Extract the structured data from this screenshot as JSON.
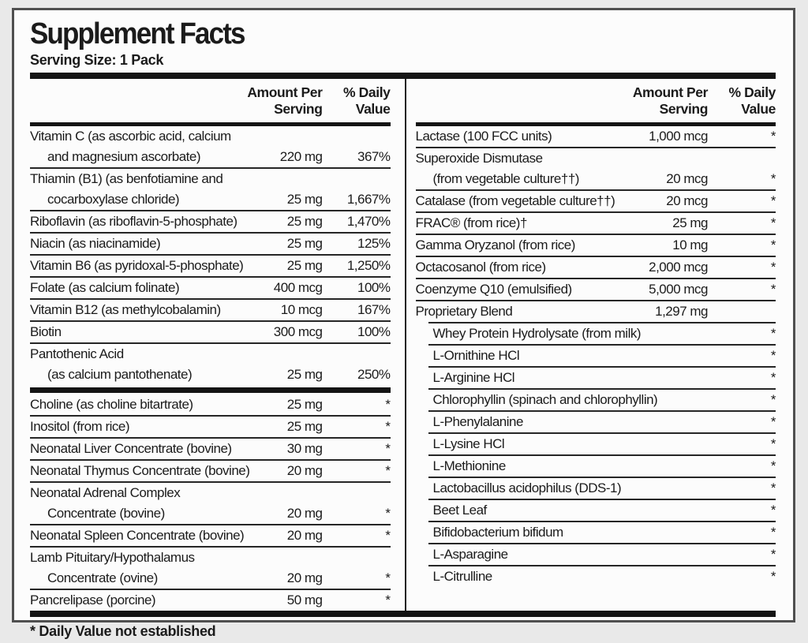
{
  "colors": {
    "ink": "#1b1b1b",
    "label_bg": "#fcfcfc",
    "page_bg": "#e9e9e9",
    "rule": "#262626"
  },
  "label": {
    "title": "Supplement Facts",
    "serving_size": "Serving Size: 1 Pack",
    "footnote": "* Daily Value not established",
    "headers": {
      "amount1": "Amount Per",
      "amount2": "Serving",
      "dv1": "% Daily",
      "dv2": "Value"
    },
    "left_rows": [
      {
        "name": "Vitamin C (as ascorbic acid, calcium",
        "name2": "and magnesium ascorbate)",
        "amount": "220 mg",
        "dv": "367%"
      },
      {
        "name": "Thiamin (B1) (as benfotiamine and",
        "name2": "cocarboxylase chloride)",
        "amount": "25 mg",
        "dv": "1,667%"
      },
      {
        "name": "Riboflavin (as riboflavin-5-phosphate)",
        "amount": "25 mg",
        "dv": "1,470%"
      },
      {
        "name": "Niacin (as niacinamide)",
        "amount": "25 mg",
        "dv": "125%"
      },
      {
        "name": "Vitamin B6 (as pyridoxal-5-phosphate)",
        "amount": "25 mg",
        "dv": "1,250%"
      },
      {
        "name": "Folate (as calcium folinate)",
        "amount": "400 mcg",
        "dv": "100%"
      },
      {
        "name": "Vitamin B12 (as methylcobalamin)",
        "amount": "10 mcg",
        "dv": "167%"
      },
      {
        "name": "Biotin",
        "amount": "300 mcg",
        "dv": "100%"
      },
      {
        "name": "Pantothenic Acid",
        "name2": "(as calcium pantothenate)",
        "amount": "25 mg",
        "dv": "250%"
      },
      {
        "name": "Choline (as choline bitartrate)",
        "amount": "25 mg",
        "dv": "*"
      },
      {
        "name": "Inositol (from rice)",
        "amount": "25 mg",
        "dv": "*"
      },
      {
        "name": "Neonatal Liver Concentrate (bovine)",
        "amount": "30 mg",
        "dv": "*"
      },
      {
        "name": "Neonatal Thymus Concentrate (bovine)",
        "amount": "20 mg",
        "dv": "*"
      },
      {
        "name": "Neonatal Adrenal Complex",
        "name2": "Concentrate (bovine)",
        "amount": "20 mg",
        "dv": "*"
      },
      {
        "name": "Neonatal Spleen Concentrate (bovine)",
        "amount": "20 mg",
        "dv": "*"
      },
      {
        "name": "Lamb Pituitary/Hypothalamus",
        "name2": "Concentrate (ovine)",
        "amount": "20 mg",
        "dv": "*"
      },
      {
        "name": "Pancrelipase (porcine)",
        "amount": "50 mg",
        "dv": "*"
      }
    ],
    "right_rows": [
      {
        "name": "Lactase (100 FCC units)",
        "amount": "1,000 mcg",
        "dv": "*"
      },
      {
        "name": "Superoxide Dismutase",
        "name2": "(from vegetable culture††)",
        "amount": "20 mcg",
        "dv": "*"
      },
      {
        "name": "Catalase (from vegetable culture††)",
        "amount": "20 mcg",
        "dv": "*"
      },
      {
        "name": "FRAC® (from rice)†",
        "amount": "25 mg",
        "dv": "*"
      },
      {
        "name": "Gamma Oryzanol (from rice)",
        "amount": "10 mg",
        "dv": "*"
      },
      {
        "name": "Octacosanol (from rice)",
        "amount": "2,000 mcg",
        "dv": "*"
      },
      {
        "name": "Coenzyme Q10 (emulsified)",
        "amount": "5,000 mcg",
        "dv": "*"
      },
      {
        "name": "Proprietary Blend",
        "amount": "1,297 mg",
        "dv": ""
      },
      {
        "name": "Whey Protein Hydrolysate (from milk)",
        "dv": "*"
      },
      {
        "name": "L-Ornithine HCl",
        "dv": "*"
      },
      {
        "name": "L-Arginine HCl",
        "dv": "*"
      },
      {
        "name": "Chlorophyllin (spinach and chlorophyllin)",
        "dv": "*"
      },
      {
        "name": "L-Phenylalanine",
        "dv": "*"
      },
      {
        "name": "L-Lysine HCl",
        "dv": "*"
      },
      {
        "name": "L-Methionine",
        "dv": "*"
      },
      {
        "name": "Lactobacillus acidophilus (DDS-1)",
        "dv": "*"
      },
      {
        "name": "Beet Leaf",
        "dv": "*"
      },
      {
        "name": "Bifidobacterium bifidum",
        "dv": "*"
      },
      {
        "name": "L-Asparagine",
        "dv": "*"
      },
      {
        "name": "L-Citrulline",
        "dv": "*"
      }
    ]
  }
}
